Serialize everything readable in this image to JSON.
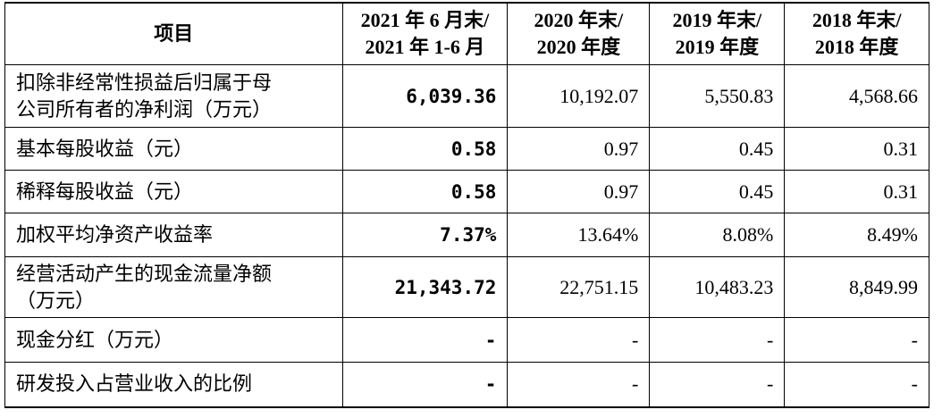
{
  "table": {
    "header": [
      [
        "项目"
      ],
      [
        "2021 年 6 月末/",
        "2021 年 1-6 月"
      ],
      [
        "2020 年末/",
        "2020 年度"
      ],
      [
        "2019 年末/",
        "2019 年度"
      ],
      [
        "2018 年末/",
        "2018 年度"
      ]
    ],
    "rows": [
      [
        "扣除非经常性损益后归属于母公司所有者的净利润（万元）",
        "6,039.36",
        "10,192.07",
        "5,550.83",
        "4,568.66"
      ],
      [
        "基本每股收益（元）",
        "0.58",
        "0.97",
        "0.45",
        "0.31"
      ],
      [
        "稀释每股收益（元）",
        "0.58",
        "0.97",
        "0.45",
        "0.31"
      ],
      [
        "加权平均净资产收益率",
        "7.37%",
        "13.64%",
        "8.08%",
        "8.49%"
      ],
      [
        "经营活动产生的现金流量净额（万元）",
        "21,343.72",
        "22,751.15",
        "10,483.23",
        "8,849.99"
      ],
      [
        "现金分红（万元）",
        "-",
        "-",
        "-",
        "-"
      ],
      [
        "研发投入占营业收入的比例",
        "-",
        "-",
        "-",
        "-"
      ]
    ]
  }
}
